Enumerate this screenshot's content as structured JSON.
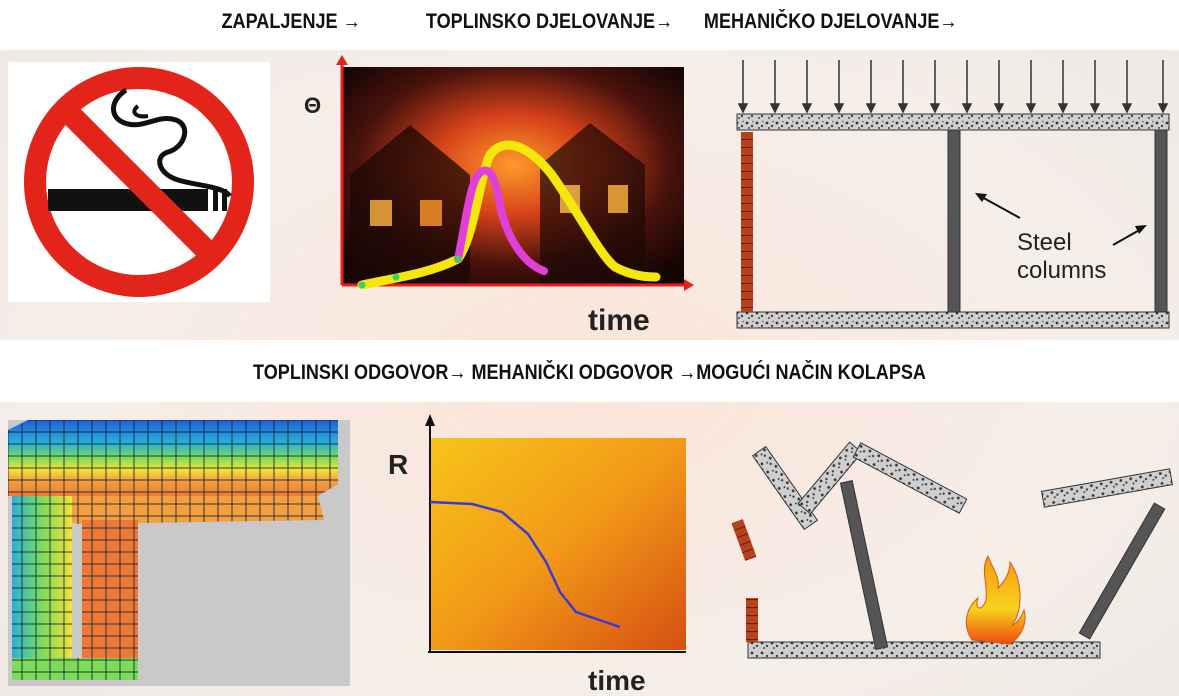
{
  "headings": {
    "top": {
      "item1": "ZAPALJENJE →",
      "item2": "TOPLINSKO DJELOVANJE→",
      "item3": "MEHANIČKO DJELOVANJE→"
    },
    "bottom": "TOPLINSKI ODGOVOR→ MEHANIČKI ODGOVOR →MOGUĆI NAČIN KOLAPSA"
  },
  "fire_curve_panel": {
    "y_symbol": "Θ",
    "x_label": "time"
  },
  "structure_panel": {
    "annotation_line1": "Steel",
    "annotation_line2": "columns"
  },
  "resistance_panel": {
    "y_label": "R",
    "x_label": "time"
  },
  "colors": {
    "no_smoking_red": "#e3241b",
    "temperature_curve": "#f5e70a",
    "heating_curve": "#e040d8",
    "resistance_curve": "#3b3bd4",
    "axis_red": "#e8201a",
    "steel_column": "#555555",
    "brick_wall": "#b5411f",
    "flame": "#f39a12"
  }
}
